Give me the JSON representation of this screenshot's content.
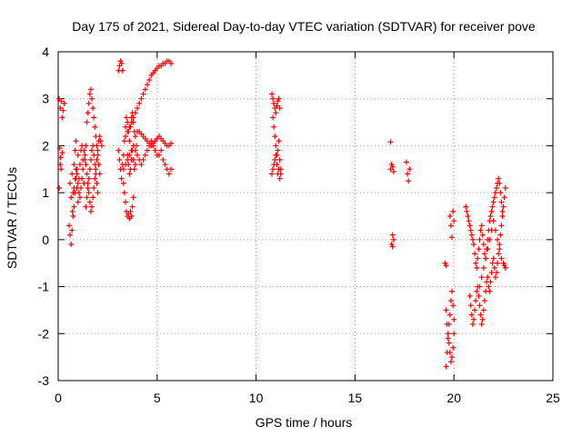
{
  "chart_data": {
    "type": "scatter",
    "title": "Day 175 of 2021, Sidereal Day-to-day VTEC variation (SDTVAR) for receiver pove",
    "xlabel": "GPS time / hours",
    "ylabel": "SDTVAR / TECUs",
    "xlim": [
      0,
      25
    ],
    "ylim": [
      -3,
      4
    ],
    "x_ticks": [
      0,
      5,
      10,
      15,
      20,
      25
    ],
    "y_ticks": [
      -3,
      -2,
      -1,
      0,
      1,
      2,
      3,
      4
    ],
    "x_tick_labels": [
      "0",
      "5",
      "10",
      "15",
      "20",
      "25"
    ],
    "y_tick_labels": [
      "-3",
      "-2",
      "-1",
      "0",
      "1",
      "2",
      "3",
      "4"
    ],
    "grid": true,
    "marker": "+",
    "color": "#ff0000",
    "series": [
      {
        "name": "SDTVAR",
        "x": [
          0.05,
          0.1,
          0.15,
          0.2,
          0.25,
          0.3,
          0.1,
          0.12,
          0.15,
          0.2,
          0.05,
          0.08,
          0.55,
          0.6,
          0.65,
          0.7,
          0.75,
          0.8,
          0.85,
          0.9,
          0.95,
          1.0,
          0.6,
          0.65,
          0.7,
          0.72,
          0.75,
          0.8,
          0.85,
          0.9,
          0.95,
          1.0,
          1.05,
          1.1,
          1.15,
          1.2,
          1.25,
          1.3,
          1.35,
          1.4,
          1.45,
          1.5,
          1.55,
          1.6,
          1.65,
          1.7,
          1.75,
          1.8,
          1.85,
          1.9,
          1.95,
          2.0,
          2.05,
          2.1,
          1.4,
          1.45,
          1.5,
          1.55,
          1.6,
          1.65,
          1.7,
          1.75,
          1.8,
          1.85,
          1.9,
          1.95,
          2.0,
          0.8,
          0.85,
          0.9,
          0.95,
          1.0,
          1.05,
          1.1,
          1.15,
          1.2,
          1.25,
          1.3,
          1.35,
          1.4,
          1.45,
          1.5,
          1.55,
          1.6,
          1.65,
          1.7,
          1.75,
          1.8,
          1.85,
          1.9,
          1.95,
          2.0,
          2.05,
          2.1,
          2.15,
          2.2,
          3.05,
          3.1,
          3.15,
          3.2,
          3.25,
          3.05,
          3.1,
          3.15,
          3.2,
          3.25,
          3.3,
          3.35,
          3.4,
          3.45,
          3.5,
          3.55,
          3.6,
          3.65,
          3.7,
          3.75,
          3.8,
          3.85,
          3.9,
          3.95,
          4.0,
          3.3,
          3.35,
          3.4,
          3.45,
          3.5,
          3.55,
          3.6,
          3.65,
          3.7,
          3.75,
          3.8,
          3.5,
          3.55,
          3.6,
          3.65,
          3.7,
          3.75,
          3.8,
          3.85,
          3.9,
          3.4,
          3.5,
          3.6,
          3.7,
          3.8,
          3.9,
          4.0,
          4.1,
          4.2,
          4.3,
          4.4,
          4.5,
          4.6,
          4.7,
          4.8,
          4.9,
          5.0,
          5.1,
          5.2,
          5.3,
          5.4,
          5.5,
          5.6,
          5.7,
          4.1,
          4.2,
          4.3,
          4.4,
          4.5,
          4.6,
          4.7,
          4.8,
          4.9,
          5.0,
          5.1,
          5.2,
          5.3,
          5.4,
          5.5,
          5.6,
          5.7,
          3.3,
          3.4,
          3.5,
          3.6,
          3.7,
          3.8,
          3.9,
          4.0,
          4.1,
          4.2,
          4.3,
          4.4,
          4.5,
          4.6,
          4.7,
          4.8,
          4.9,
          5.0,
          5.1,
          5.2,
          5.3,
          5.4,
          5.5,
          5.6,
          5.7,
          10.8,
          10.85,
          10.9,
          10.95,
          11.0,
          11.05,
          11.1,
          11.15,
          11.2,
          10.85,
          10.9,
          10.95,
          11.0,
          11.05,
          11.1,
          11.15,
          11.2,
          11.25,
          10.8,
          10.85,
          10.9,
          10.95,
          11.0,
          11.05,
          11.1,
          11.15,
          11.2,
          11.25,
          16.8,
          16.85,
          16.9,
          16.95,
          16.8,
          16.85,
          16.9,
          16.95,
          16.9,
          17.6,
          17.65,
          17.7,
          17.75,
          19.6,
          19.65,
          19.7,
          19.75,
          19.8,
          19.85,
          19.9,
          19.95,
          20.0,
          19.6,
          19.65,
          19.7,
          19.75,
          19.8,
          19.85,
          19.9,
          19.95,
          20.0,
          19.8,
          19.85,
          19.9,
          19.55,
          19.6,
          19.95,
          20.0,
          20.6,
          20.65,
          20.7,
          20.75,
          20.8,
          20.85,
          20.9,
          20.95,
          21.0,
          21.05,
          21.1,
          21.15,
          21.2,
          21.25,
          21.3,
          21.35,
          21.4,
          21.45,
          21.5,
          21.55,
          21.6,
          21.65,
          21.7,
          21.75,
          21.8,
          21.85,
          21.9,
          21.95,
          22.0,
          22.05,
          22.1,
          22.15,
          22.2,
          22.25,
          22.3,
          22.35,
          22.4,
          22.45,
          22.5,
          22.55,
          22.6,
          20.8,
          20.85,
          20.9,
          20.95,
          21.0,
          21.05,
          21.1,
          21.15,
          21.2,
          21.25,
          21.3,
          21.35,
          21.4,
          21.45,
          21.5,
          21.55,
          21.6,
          21.65,
          21.7,
          21.75,
          21.8,
          21.85,
          21.9,
          21.95,
          22.0,
          22.05,
          22.1,
          22.15,
          22.2,
          22.25,
          22.3,
          22.35,
          22.4,
          22.45,
          22.5,
          22.55,
          22.6,
          21.3,
          21.4,
          21.5,
          21.6,
          21.7,
          21.8,
          21.9,
          22.0,
          22.1,
          22.2,
          22.3,
          22.4,
          22.5,
          22.6
        ],
        "y": [
          3.0,
          2.8,
          2.95,
          2.6,
          2.75,
          2.9,
          1.6,
          1.75,
          1.5,
          1.85,
          1.1,
          1.95,
          0.3,
          0.1,
          -0.1,
          0.2,
          0.5,
          0.7,
          1.0,
          1.3,
          1.5,
          1.8,
          1.2,
          0.9,
          1.4,
          0.6,
          1.0,
          1.6,
          1.9,
          2.1,
          1.1,
          0.8,
          1.3,
          1.6,
          1.9,
          2.0,
          1.5,
          1.2,
          1.7,
          2.0,
          2.5,
          2.7,
          2.9,
          3.1,
          3.2,
          3.0,
          2.8,
          2.6,
          2.4,
          2.2,
          2.0,
          1.8,
          1.6,
          1.4,
          0.7,
          0.9,
          1.1,
          1.3,
          1.5,
          1.7,
          1.9,
          2.0,
          1.8,
          1.6,
          1.4,
          1.2,
          1.0,
          1.1,
          1.3,
          1.5,
          1.4,
          1.2,
          1.0,
          0.9,
          1.1,
          1.3,
          1.7,
          1.9,
          1.8,
          1.6,
          1.4,
          1.2,
          1.0,
          0.8,
          0.6,
          0.7,
          0.9,
          1.1,
          1.3,
          1.5,
          1.7,
          1.9,
          2.1,
          2.2,
          2.1,
          2.0,
          3.6,
          3.7,
          3.8,
          3.75,
          3.6,
          1.9,
          1.7,
          1.5,
          1.3,
          1.6,
          1.8,
          2.1,
          2.4,
          2.6,
          2.5,
          2.3,
          2.1,
          2.4,
          2.6,
          2.7,
          2.5,
          2.3,
          2.2,
          2.0,
          2.3,
          1.2,
          1.0,
          0.8,
          0.6,
          0.5,
          0.55,
          0.45,
          0.6,
          0.5,
          0.7,
          0.9,
          1.8,
          1.6,
          1.4,
          1.5,
          1.7,
          1.9,
          1.7,
          1.5,
          1.6,
          2.2,
          2.3,
          2.4,
          2.5,
          2.6,
          2.7,
          2.8,
          2.9,
          3.0,
          3.1,
          3.2,
          3.3,
          3.4,
          3.5,
          3.55,
          3.6,
          3.65,
          3.7,
          3.7,
          3.75,
          3.75,
          3.8,
          3.8,
          3.75,
          2.3,
          2.25,
          2.2,
          2.15,
          2.1,
          2.05,
          2.0,
          2.05,
          2.1,
          2.15,
          2.2,
          2.15,
          2.1,
          2.05,
          2.0,
          2.0,
          2.05,
          1.5,
          1.6,
          1.7,
          1.8,
          1.9,
          2.0,
          1.9,
          1.8,
          1.7,
          1.6,
          1.7,
          1.8,
          1.9,
          2.0,
          2.1,
          2.0,
          1.9,
          1.8,
          1.8,
          1.9,
          1.7,
          1.6,
          1.5,
          1.4,
          1.5,
          3.1,
          3.0,
          2.9,
          2.8,
          2.7,
          2.85,
          2.95,
          3.0,
          2.8,
          2.6,
          2.4,
          2.2,
          2.0,
          1.8,
          1.9,
          2.1,
          1.7,
          1.5,
          1.4,
          1.5,
          1.6,
          1.7,
          1.8,
          1.6,
          1.4,
          1.5,
          1.3,
          1.4,
          1.5,
          1.6,
          1.55,
          1.45,
          2.08,
          -0.1,
          -0.15,
          0.0,
          0.1,
          1.65,
          1.4,
          1.25,
          1.5,
          -1.5,
          -1.8,
          -2.0,
          -2.2,
          -2.4,
          -2.6,
          -2.5,
          -2.3,
          -2.0,
          -2.7,
          -2.4,
          -2.1,
          -1.8,
          -1.6,
          -1.3,
          -1.1,
          -1.4,
          -1.7,
          0.5,
          0.3,
          0.05,
          -0.5,
          -0.55,
          0.6,
          0.4,
          0.7,
          0.6,
          0.5,
          0.4,
          0.3,
          0.2,
          0.1,
          0.0,
          -0.1,
          -0.3,
          -0.5,
          -0.6,
          -0.4,
          -0.2,
          0.0,
          0.2,
          0.3,
          0.1,
          -0.1,
          -0.3,
          -0.4,
          -0.2,
          0.0,
          0.2,
          0.4,
          0.5,
          0.6,
          0.7,
          0.8,
          0.9,
          1.0,
          1.1,
          1.2,
          1.3,
          1.2,
          1.0,
          0.8,
          0.6,
          -0.5,
          -0.55,
          -0.6,
          -1.2,
          -1.4,
          -1.6,
          -1.8,
          -1.7,
          -1.5,
          -1.3,
          -1.1,
          -1.0,
          -1.2,
          -1.4,
          -1.6,
          -1.8,
          -1.7,
          -1.5,
          -1.3,
          -1.1,
          -0.9,
          -0.8,
          -1.0,
          -1.1,
          -0.9,
          -0.7,
          -0.5,
          -0.4,
          -0.6,
          -0.8,
          -0.7,
          -0.5,
          -0.3,
          -0.1,
          0.1,
          0.3,
          0.5,
          0.7,
          0.9,
          1.1,
          -1.0,
          -0.8,
          -0.6,
          -0.4,
          -0.2,
          0.0,
          0.2,
          0.4,
          0.2,
          0.0,
          -0.2,
          -0.4,
          -0.5,
          -0.6
        ]
      }
    ]
  }
}
